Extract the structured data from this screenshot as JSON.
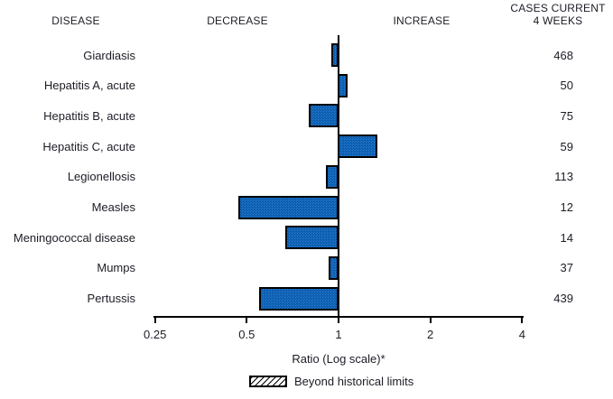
{
  "chart_data": {
    "type": "bar",
    "orientation": "horizontal",
    "scale": "log2",
    "title": "",
    "annotations": {
      "disease_header": "DISEASE",
      "decrease_header": "DECREASE",
      "increase_header": "INCREASE",
      "cases_header": [
        "CASES CURRENT",
        "4 WEEKS"
      ]
    },
    "categories": [
      "Giardiasis",
      "Hepatitis A, acute",
      "Hepatitis B, acute",
      "Hepatitis C, acute",
      "Legionellosis",
      "Measles",
      "Meningococcal disease",
      "Mumps",
      "Pertussis"
    ],
    "series": [
      {
        "name": "Ratio (Log scale)",
        "values": [
          0.95,
          1.08,
          0.8,
          1.35,
          0.91,
          0.47,
          0.67,
          0.93,
          0.55
        ]
      },
      {
        "name": "Cases current 4 weeks",
        "values": [
          468,
          50,
          75,
          59,
          113,
          12,
          14,
          37,
          439
        ]
      }
    ],
    "beyond_historical_limits": [
      false,
      false,
      false,
      false,
      false,
      false,
      false,
      false,
      false
    ],
    "baseline": 1,
    "xlim": [
      0.25,
      4
    ],
    "x_ticks": [
      0.25,
      0.5,
      1,
      2,
      4
    ],
    "x_tick_labels": [
      "0.25",
      "0.5",
      "1",
      "2",
      "4"
    ],
    "xlabel": "Ratio (Log scale)*",
    "legend": [
      {
        "label": "Beyond historical limits",
        "style": "hatched"
      }
    ],
    "colors": {
      "bar_fill_dark": "#0b5cac",
      "bar_fill_light": "#2c80d8",
      "bar_border": "#000000",
      "text": "#1c1c26"
    }
  }
}
